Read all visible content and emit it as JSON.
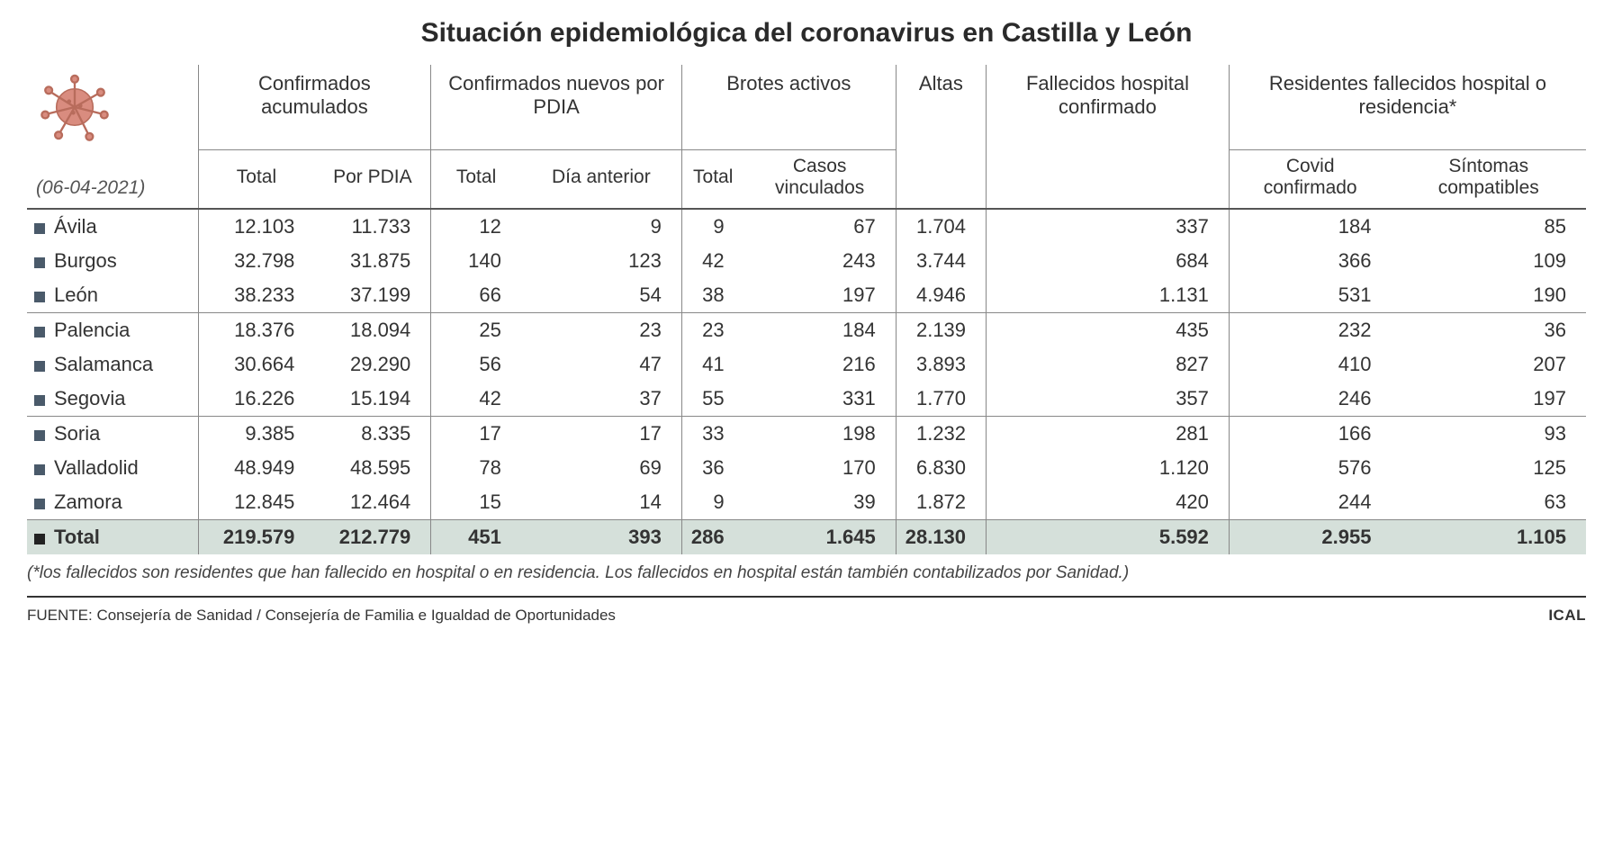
{
  "title": "Situación epidemiológica del coronavirus en Castilla y León",
  "date": "(06-04-2021)",
  "headers": {
    "confirmados_acum": "Confirmados acumulados",
    "confirmados_nuevos": "Confirmados nuevos por PDIA",
    "brotes": "Brotes activos",
    "altas": "Altas",
    "fallecidos_hosp": "Fallecidos hospital confirmado",
    "residentes": "Residentes fallecidos hospital o residencia*",
    "sub": {
      "total": "Total",
      "por_pdia": "Por PDIA",
      "dia_anterior": "Día anterior",
      "casos_vinculados": "Casos vinculados",
      "covid_confirmado": "Covid confirmado",
      "sintomas": "Síntomas compatibles"
    }
  },
  "colors": {
    "bullet": "#4a5a6a",
    "total_bg": "#d5e0da",
    "border": "#888888",
    "text": "#333333",
    "virus_fill": "#d98c7f",
    "virus_stroke": "#b86c5c"
  },
  "rows": [
    {
      "name": "Ávila",
      "conf_total": "12.103",
      "conf_pdia": "11.733",
      "nuevos_total": "12",
      "nuevos_dia": "9",
      "brotes_total": "9",
      "brotes_casos": "67",
      "altas": "1.704",
      "fallec_hosp": "337",
      "res_covid": "184",
      "res_sint": "85"
    },
    {
      "name": "Burgos",
      "conf_total": "32.798",
      "conf_pdia": "31.875",
      "nuevos_total": "140",
      "nuevos_dia": "123",
      "brotes_total": "42",
      "brotes_casos": "243",
      "altas": "3.744",
      "fallec_hosp": "684",
      "res_covid": "366",
      "res_sint": "109"
    },
    {
      "name": "León",
      "conf_total": "38.233",
      "conf_pdia": "37.199",
      "nuevos_total": "66",
      "nuevos_dia": "54",
      "brotes_total": "38",
      "brotes_casos": "197",
      "altas": "4.946",
      "fallec_hosp": "1.131",
      "res_covid": "531",
      "res_sint": "190"
    },
    {
      "name": "Palencia",
      "conf_total": "18.376",
      "conf_pdia": "18.094",
      "nuevos_total": "25",
      "nuevos_dia": "23",
      "brotes_total": "23",
      "brotes_casos": "184",
      "altas": "2.139",
      "fallec_hosp": "435",
      "res_covid": "232",
      "res_sint": "36"
    },
    {
      "name": "Salamanca",
      "conf_total": "30.664",
      "conf_pdia": "29.290",
      "nuevos_total": "56",
      "nuevos_dia": "47",
      "brotes_total": "41",
      "brotes_casos": "216",
      "altas": "3.893",
      "fallec_hosp": "827",
      "res_covid": "410",
      "res_sint": "207"
    },
    {
      "name": "Segovia",
      "conf_total": "16.226",
      "conf_pdia": "15.194",
      "nuevos_total": "42",
      "nuevos_dia": "37",
      "brotes_total": "55",
      "brotes_casos": "331",
      "altas": "1.770",
      "fallec_hosp": "357",
      "res_covid": "246",
      "res_sint": "197"
    },
    {
      "name": "Soria",
      "conf_total": "9.385",
      "conf_pdia": "8.335",
      "nuevos_total": "17",
      "nuevos_dia": "17",
      "brotes_total": "33",
      "brotes_casos": "198",
      "altas": "1.232",
      "fallec_hosp": "281",
      "res_covid": "166",
      "res_sint": "93"
    },
    {
      "name": "Valladolid",
      "conf_total": "48.949",
      "conf_pdia": "48.595",
      "nuevos_total": "78",
      "nuevos_dia": "69",
      "brotes_total": "36",
      "brotes_casos": "170",
      "altas": "6.830",
      "fallec_hosp": "1.120",
      "res_covid": "576",
      "res_sint": "125"
    },
    {
      "name": "Zamora",
      "conf_total": "12.845",
      "conf_pdia": "12.464",
      "nuevos_total": "15",
      "nuevos_dia": "14",
      "brotes_total": "9",
      "brotes_casos": "39",
      "altas": "1.872",
      "fallec_hosp": "420",
      "res_covid": "244",
      "res_sint": "63"
    }
  ],
  "group_after": [
    3,
    6
  ],
  "total": {
    "label": "Total",
    "conf_total": "219.579",
    "conf_pdia": "212.779",
    "nuevos_total": "451",
    "nuevos_dia": "393",
    "brotes_total": "286",
    "brotes_casos": "1.645",
    "altas": "28.130",
    "fallec_hosp": "5.592",
    "res_covid": "2.955",
    "res_sint": "1.105"
  },
  "footnote": "(*los fallecidos son residentes que han fallecido en hospital o en residencia. Los fallecidos en hospital están también contabilizados por Sanidad.)",
  "source_label": "FUENTE: Consejería de Sanidad / Consejería de Familia e Igualdad de Oportunidades",
  "brand": "ICAL"
}
